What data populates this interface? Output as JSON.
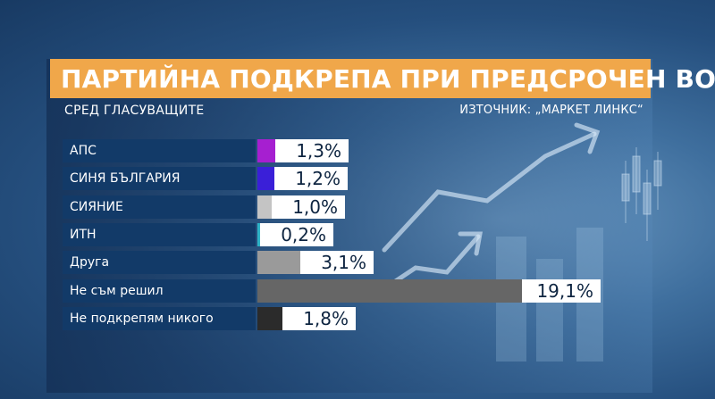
{
  "header": {
    "title": "ПАРТИЙНА ПОДКРЕПА ПРИ ПРЕДСРОЧЕН ВОТ",
    "subtitle": "СРЕД ГЛАСУВАЩИТЕ",
    "source": "ИЗТОЧНИК: „МАРКЕТ ЛИНКС“"
  },
  "chart_data": {
    "type": "bar",
    "orientation": "horizontal",
    "categories": [
      "АПС",
      "СИНЯ БЪЛГАРИЯ",
      "СИЯНИЕ",
      "ИТН",
      "Друга",
      "Не съм решил",
      "Не подкрепям никого"
    ],
    "values": [
      1.3,
      1.2,
      1.0,
      0.2,
      3.1,
      19.1,
      1.8
    ],
    "value_labels": [
      "1,3%",
      "1,2%",
      "1,0%",
      "0,2%",
      "3,1%",
      "19,1%",
      "1,8%"
    ],
    "colors": [
      "#a61fd0",
      "#3a1fd8",
      "#c4c4c4",
      "#2fb3c7",
      "#9a9a9a",
      "#666666",
      "#2b2b2b"
    ],
    "unit": "%",
    "title": "ПАРТИЙНА ПОДКРЕПА ПРИ ПРЕДСРОЧЕН ВОТ",
    "subtitle": "СРЕД ГЛАСУВАЩИТЕ",
    "grid": false,
    "legend": "none"
  }
}
